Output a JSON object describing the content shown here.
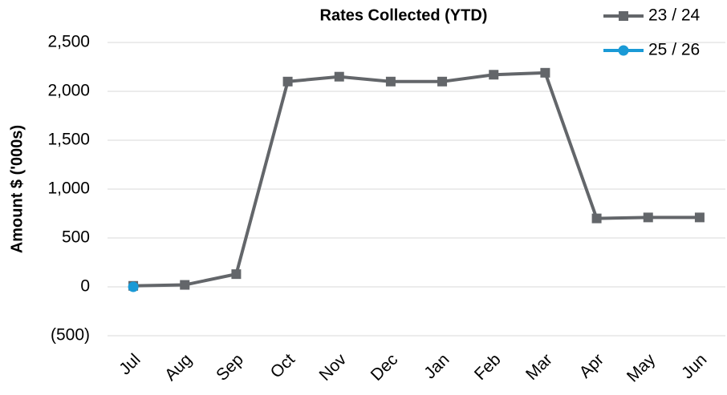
{
  "chart_data": {
    "type": "line",
    "title": "Rates Collected (YTD)",
    "y_label": "Amount $ ('000s)",
    "categories": [
      "Jul",
      "Aug",
      "Sep",
      "Oct",
      "Nov",
      "Dec",
      "Jan",
      "Feb",
      "Mar",
      "Apr",
      "May",
      "Jun"
    ],
    "series": [
      {
        "name": "23 / 24",
        "color": "#63666a",
        "marker": "square",
        "values": [
          10,
          20,
          130,
          2100,
          2150,
          2100,
          2100,
          2170,
          2190,
          700,
          710,
          710
        ]
      },
      {
        "name": "25 / 26",
        "color": "#1a9ad6",
        "marker": "circle",
        "values": [
          0,
          null,
          null,
          null,
          null,
          null,
          null,
          null,
          null,
          null,
          null,
          null
        ]
      }
    ],
    "ylim": [
      -500,
      2500
    ],
    "yticks": [
      {
        "value": -500,
        "label": "(500)"
      },
      0,
      500,
      {
        "value": 1000,
        "label": "1,000"
      },
      {
        "value": 1500,
        "label": "1,500"
      },
      {
        "value": 2000,
        "label": "2,000"
      },
      {
        "value": 2500,
        "label": "2,500"
      }
    ],
    "grid": true,
    "legend": "top-right"
  }
}
